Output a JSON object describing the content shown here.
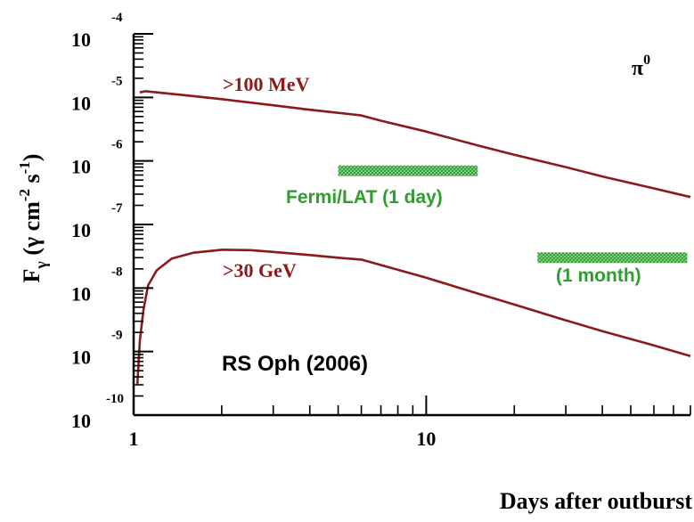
{
  "chart_data": {
    "type": "line",
    "xscale": "log",
    "yscale": "log",
    "xlim": [
      1,
      80
    ],
    "ylim": [
      1e-10,
      0.0001
    ],
    "xlabel": "Days after outburst",
    "ylabel": "Fγ (γ cm-2 s-1)",
    "ylabel_parts": {
      "main": "F",
      "sub": "γ",
      "units_a": " (γ cm",
      "exp1": "-2",
      "units_b": " s",
      "exp2": "-1",
      "units_c": ")"
    },
    "x_ticks": [
      {
        "value": 1,
        "label": "1"
      },
      {
        "value": 10,
        "label": "10"
      }
    ],
    "y_ticks": [
      {
        "value": 0.0001,
        "base": "10",
        "exp": "-4"
      },
      {
        "value": 1e-05,
        "base": "10",
        "exp": "-5"
      },
      {
        "value": 1e-06,
        "base": "10",
        "exp": "-6"
      },
      {
        "value": 1e-07,
        "base": "10",
        "exp": "-7"
      },
      {
        "value": 1e-08,
        "base": "10",
        "exp": "-8"
      },
      {
        "value": 1e-09,
        "base": "10",
        "exp": "-9"
      },
      {
        "value": 1e-10,
        "base": "10",
        "exp": "-10"
      }
    ],
    "series": [
      {
        "name": ">100 MeV",
        "color": "#8b1a1a",
        "points": [
          [
            1.05,
            1.2e-05
          ],
          [
            1.1,
            1.25e-05
          ],
          [
            1.2,
            1.2e-05
          ],
          [
            1.5,
            1.08e-05
          ],
          [
            2,
            9.4e-06
          ],
          [
            3,
            7.5e-06
          ],
          [
            4,
            6.4e-06
          ],
          [
            5,
            5.7e-06
          ],
          [
            6,
            5.2e-06
          ],
          [
            7,
            4.3e-06
          ],
          [
            10,
            2.9e-06
          ],
          [
            15,
            1.75e-06
          ],
          [
            20,
            1.25e-06
          ],
          [
            30,
            8e-07
          ],
          [
            40,
            5.7e-07
          ],
          [
            60,
            3.7e-07
          ],
          [
            80,
            2.7e-07
          ]
        ]
      },
      {
        "name": ">30 GeV",
        "color": "#8b1a1a",
        "points": [
          [
            1.03,
            3.1e-10
          ],
          [
            1.05,
            1.5e-09
          ],
          [
            1.08,
            4.5e-09
          ],
          [
            1.12,
            1.1e-08
          ],
          [
            1.2,
            1.9e-08
          ],
          [
            1.35,
            2.9e-08
          ],
          [
            1.6,
            3.6e-08
          ],
          [
            2,
            4e-08
          ],
          [
            2.5,
            3.95e-08
          ],
          [
            3,
            3.7e-08
          ],
          [
            4,
            3.3e-08
          ],
          [
            5,
            3e-08
          ],
          [
            6,
            2.8e-08
          ],
          [
            7,
            2.3e-08
          ],
          [
            10,
            1.45e-08
          ],
          [
            15,
            8.2e-09
          ],
          [
            20,
            5.5e-09
          ],
          [
            30,
            3.1e-09
          ],
          [
            40,
            2.1e-09
          ],
          [
            60,
            1.25e-09
          ],
          [
            80,
            8.5e-10
          ]
        ]
      }
    ],
    "bands": [
      {
        "label": "Fermi/LAT (1 day)",
        "x": [
          5,
          15
        ],
        "y": 7e-07,
        "color": "#2e9e2e"
      },
      {
        "label": "(1 month)",
        "x": [
          24,
          78
        ],
        "y": 3e-08,
        "color": "#2e9e2e"
      }
    ],
    "annotations": {
      "object": "RS Oph (2006)",
      "process_base": "π",
      "process_sup": "0"
    },
    "grid": false,
    "legend": "none"
  }
}
